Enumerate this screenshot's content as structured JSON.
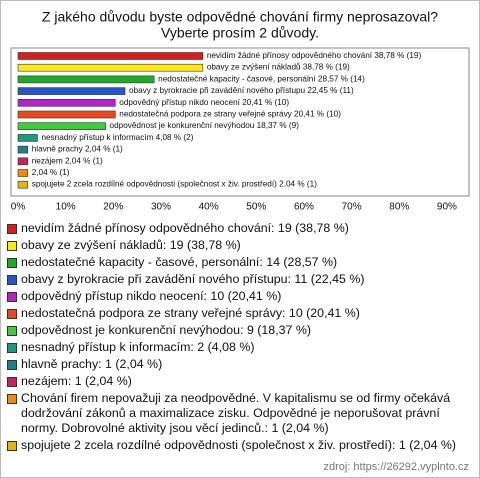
{
  "chart_data": {
    "type": "bar",
    "orientation": "horizontal",
    "title": "Z jakého důvodu byste odpovědné chování firmy neprosazoval?",
    "subtitle": "Vyberte prosím 2 důvody.",
    "categories": [
      "nevidím žádné přínosy odpovědného chování",
      "obavy ze zvýšení nákladů",
      "nedostatečné kapacity - časové, personální",
      "obavy z byrokracie při zavádění nového přístupu",
      "odpovědný přístup nikdo neocení",
      "nedostatečná podpora ze strany veřejné správy",
      "odpovědnost je konkurenční nevýhodou",
      "nesnadný přístup k informacím",
      "hlavně prachy",
      "nezájem",
      null,
      "spojujete 2 zcela rozdílné odpovědnosti (společnost x živ. prostředí)"
    ],
    "values": [
      38.78,
      38.78,
      28.57,
      22.45,
      20.41,
      20.41,
      18.37,
      4.08,
      2.04,
      2.04,
      2.04,
      2.04
    ],
    "value_labels": [
      "38,78 % (19)",
      "38,78 % (19)",
      "28,57 % (14)",
      "22,45 % (11)",
      "20,41 % (10)",
      "20,41 % (10)",
      "18,37 % (9)",
      "4,08 % (2)",
      "2,04 % (1)",
      "2,04 % (1)",
      "2,04 % (1)",
      "2,04 % (1)"
    ],
    "colors": [
      "#d41f1f",
      "#ffe81a",
      "#1faa2a",
      "#2657c9",
      "#b223c8",
      "#e8491a",
      "#3ccc3c",
      "#1f9a7a",
      "#1f7f8c",
      "#c8245a",
      "#f28a12",
      "#e2b20f"
    ],
    "legend_labels": [
      "nevidím žádné přínosy odpovědného chování: 19 (38,78 %)",
      "obavy ze zvýšení nákladů: 19 (38,78 %)",
      "nedostatečné kapacity - časové, personální: 14 (28,57 %)",
      "obavy z byrokracie při zavádění nového přístupu: 11 (22,45 %)",
      "odpovědný přístup nikdo neocení: 10 (20,41 %)",
      "nedostatečná podpora ze strany veřejné správy: 10 (20,41 %)",
      "odpovědnost je konkurenční nevýhodou: 9 (18,37 %)",
      "nesnadný přístup k informacím: 2 (4,08 %)",
      "hlavně prachy: 1 (2,04 %)",
      "nezájem: 1 (2,04 %)",
      "Chování firem nepovažuji za neodpovědné. V kapitalismu se od firmy očekává dodržování zákonů a maximalizace zisku. Odpovědné je neporušovat právní normy. Dobrovolné aktivity jsou věcí jedinců.: 1 (2,04 %)",
      "spojujete 2 zcela rozdílné odpovědnosti (společnost x živ. prostředí): 1 (2,04 %)"
    ],
    "xlim": [
      0,
      94
    ],
    "xticks": [
      {
        "value": 0,
        "label": "0%"
      },
      {
        "value": 10,
        "label": "10%"
      },
      {
        "value": 20,
        "label": "20%"
      },
      {
        "value": 30,
        "label": "30%"
      },
      {
        "value": 40,
        "label": "40%"
      },
      {
        "value": 50,
        "label": "50%"
      },
      {
        "value": 60,
        "label": "60%"
      },
      {
        "value": 70,
        "label": "70%"
      },
      {
        "value": 80,
        "label": "80%"
      },
      {
        "value": 90,
        "label": "90%"
      }
    ],
    "grid": false,
    "source": "zdroj: https://26292.vyplnto.cz"
  }
}
